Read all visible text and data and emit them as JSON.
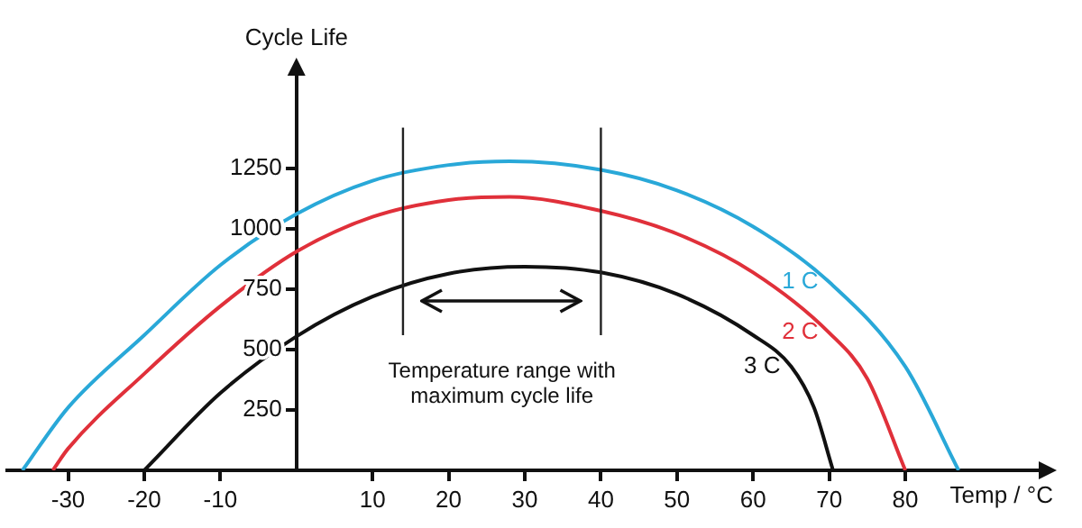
{
  "chart_data": {
    "type": "line",
    "xlabel": "Temp / °C",
    "ylabel": "Cycle Life",
    "xlim": [
      -38,
      98
    ],
    "ylim": [
      0,
      1650
    ],
    "xticks": [
      -30,
      -20,
      -10,
      10,
      20,
      30,
      40,
      50,
      60,
      70,
      80
    ],
    "yticks": [
      250,
      500,
      750,
      1000,
      1250
    ],
    "grid": false,
    "legend": false,
    "marker": "none",
    "line_style": "solid",
    "series": [
      {
        "name": "1 C",
        "color": "#29a8d8",
        "x": [
          -36,
          -30,
          -20,
          -10,
          0,
          10,
          20,
          28,
          40,
          50,
          60,
          70,
          80,
          87
        ],
        "values": [
          0,
          260,
          560,
          850,
          1062,
          1200,
          1265,
          1280,
          1245,
          1160,
          1010,
          780,
          430,
          0
        ]
      },
      {
        "name": "2 C",
        "color": "#e0303a",
        "x": [
          -32,
          -30,
          -20,
          -10,
          0,
          10,
          20,
          28,
          40,
          50,
          60,
          70,
          75,
          80
        ],
        "values": [
          0,
          90,
          400,
          680,
          906,
          1050,
          1120,
          1133,
          1075,
          980,
          820,
          570,
          380,
          0
        ]
      },
      {
        "name": "3 C",
        "color": "#111111",
        "x": [
          -20,
          -10,
          0,
          10,
          20,
          30,
          40,
          50,
          60,
          65,
          68,
          70.5
        ],
        "values": [
          0,
          320,
          555,
          720,
          815,
          844,
          820,
          730,
          560,
          430,
          260,
          0
        ]
      }
    ],
    "ref_lines": [
      {
        "axis": "x",
        "value": 14,
        "color": "#222222"
      },
      {
        "axis": "x",
        "value": 40,
        "color": "#222222"
      }
    ],
    "annotations": [
      "Temperature range with maximum cycle life"
    ]
  }
}
